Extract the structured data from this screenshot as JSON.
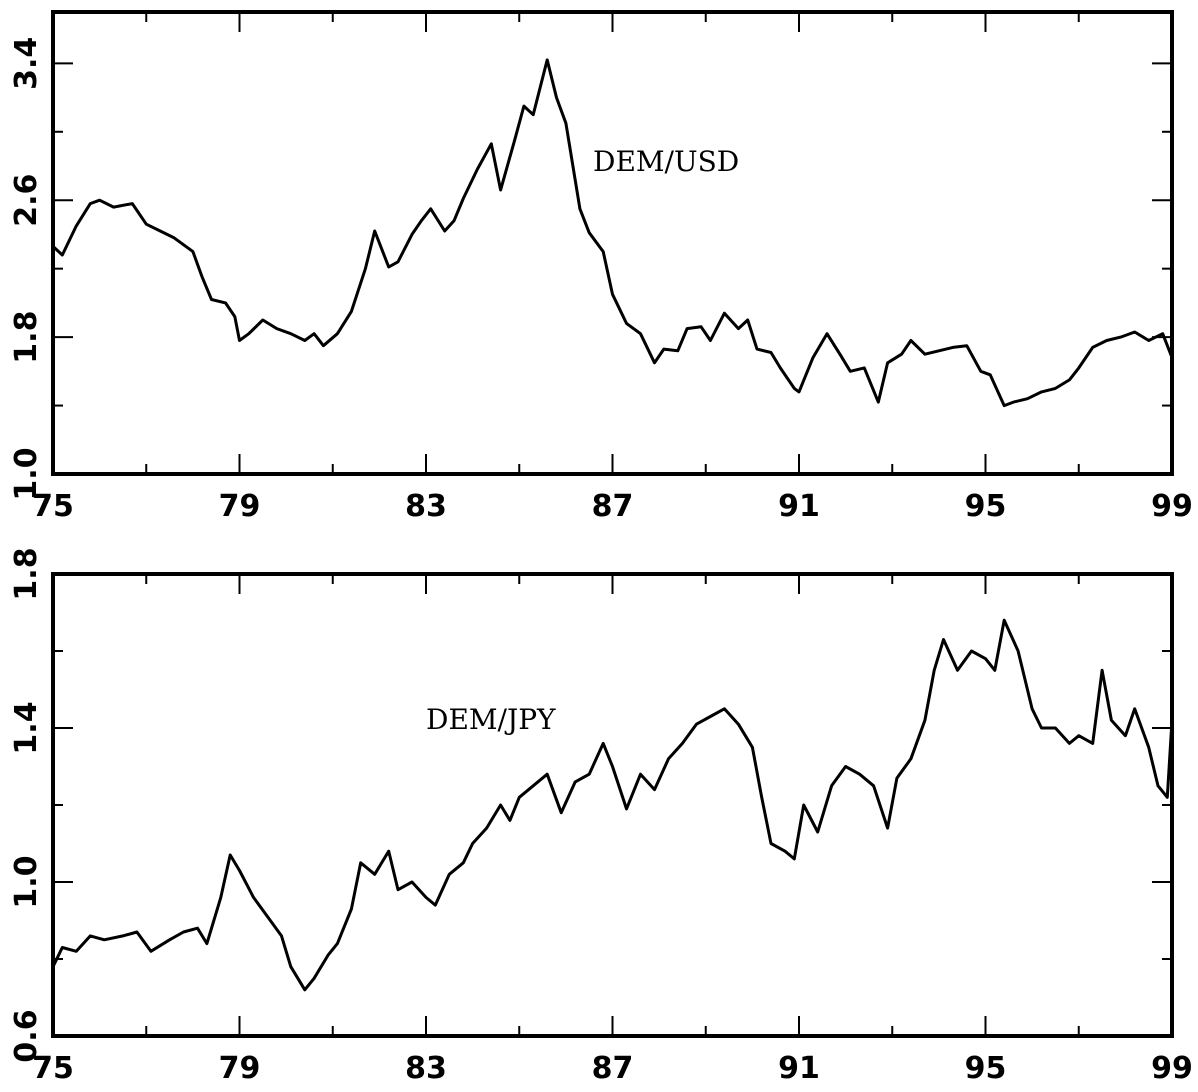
{
  "chart_data": [
    {
      "type": "line",
      "title": "",
      "xlabel": "",
      "ylabel": "",
      "annotation": "DEM/USD",
      "xlim": [
        75,
        99
      ],
      "ylim": [
        1.0,
        3.7
      ],
      "xtick_labels": [
        "75",
        "79",
        "83",
        "87",
        "91",
        "95",
        "99"
      ],
      "ytick_labels": [
        "1.0",
        "1.8",
        "2.6",
        "3.4"
      ],
      "grid": false,
      "series": [
        {
          "x": [
            75.0,
            75.2,
            75.5,
            75.8,
            76.0,
            76.3,
            76.7,
            77.0,
            77.3,
            77.6,
            78.0,
            78.2,
            78.4,
            78.7,
            78.9,
            79.0,
            79.2,
            79.5,
            79.8,
            80.1,
            80.4,
            80.6,
            80.8,
            81.1,
            81.4,
            81.7,
            81.9,
            82.2,
            82.4,
            82.7,
            82.9,
            83.1,
            83.4,
            83.6,
            83.8,
            84.1,
            84.4,
            84.6,
            84.9,
            85.1,
            85.3,
            85.6,
            85.8,
            86.0,
            86.3,
            86.5,
            86.8,
            87.0,
            87.3,
            87.6,
            87.9,
            88.1,
            88.4,
            88.6,
            88.9,
            89.1,
            89.4,
            89.7,
            89.9,
            90.1,
            90.4,
            90.6,
            90.9,
            91.0,
            91.3,
            91.6,
            91.9,
            92.1,
            92.4,
            92.7,
            92.9,
            93.2,
            93.4,
            93.7,
            94.0,
            94.3,
            94.6,
            94.9,
            95.1,
            95.4,
            95.6,
            95.9,
            96.2,
            96.5,
            96.8,
            97.0,
            97.3,
            97.6,
            97.9,
            98.2,
            98.5,
            98.8,
            99.0
          ],
          "values": [
            2.33,
            2.28,
            2.45,
            2.58,
            2.6,
            2.56,
            2.58,
            2.46,
            2.42,
            2.38,
            2.3,
            2.15,
            2.02,
            2.0,
            1.92,
            1.78,
            1.82,
            1.9,
            1.85,
            1.82,
            1.78,
            1.82,
            1.75,
            1.82,
            1.95,
            2.2,
            2.42,
            2.21,
            2.24,
            2.4,
            2.48,
            2.55,
            2.42,
            2.48,
            2.61,
            2.78,
            2.93,
            2.66,
            2.95,
            3.15,
            3.1,
            3.42,
            3.2,
            3.05,
            2.55,
            2.41,
            2.3,
            2.05,
            1.88,
            1.82,
            1.65,
            1.73,
            1.72,
            1.85,
            1.86,
            1.78,
            1.94,
            1.85,
            1.9,
            1.73,
            1.71,
            1.62,
            1.5,
            1.48,
            1.68,
            1.82,
            1.69,
            1.6,
            1.62,
            1.42,
            1.65,
            1.7,
            1.78,
            1.7,
            1.72,
            1.74,
            1.75,
            1.6,
            1.58,
            1.4,
            1.42,
            1.44,
            1.48,
            1.5,
            1.55,
            1.62,
            1.74,
            1.78,
            1.8,
            1.83,
            1.78,
            1.82,
            1.68
          ]
        }
      ]
    },
    {
      "type": "line",
      "title": "",
      "xlabel": "",
      "ylabel": "",
      "annotation": "DEM/JPY",
      "xlim": [
        75,
        99
      ],
      "ylim": [
        0.6,
        1.8
      ],
      "xtick_labels": [
        "75",
        "79",
        "83",
        "87",
        "91",
        "95",
        "99"
      ],
      "ytick_labels": [
        "0.6",
        "1.0",
        "1.4",
        "1.8"
      ],
      "grid": false,
      "series": [
        {
          "x": [
            75.0,
            75.2,
            75.5,
            75.8,
            76.1,
            76.5,
            76.8,
            77.1,
            77.5,
            77.8,
            78.1,
            78.3,
            78.6,
            78.8,
            79.0,
            79.3,
            79.6,
            79.9,
            80.1,
            80.4,
            80.6,
            80.9,
            81.1,
            81.4,
            81.6,
            81.9,
            82.2,
            82.4,
            82.7,
            83.0,
            83.2,
            83.5,
            83.8,
            84.0,
            84.3,
            84.6,
            84.8,
            85.0,
            85.3,
            85.6,
            85.9,
            86.2,
            86.5,
            86.8,
            87.0,
            87.3,
            87.6,
            87.9,
            88.2,
            88.5,
            88.8,
            89.1,
            89.4,
            89.7,
            90.0,
            90.2,
            90.4,
            90.7,
            90.9,
            91.1,
            91.4,
            91.7,
            92.0,
            92.3,
            92.6,
            92.9,
            93.1,
            93.4,
            93.7,
            93.9,
            94.1,
            94.4,
            94.7,
            95.0,
            95.2,
            95.4,
            95.7,
            96.0,
            96.2,
            96.5,
            96.8,
            97.0,
            97.3,
            97.5,
            97.7,
            98.0,
            98.2,
            98.5,
            98.7,
            98.9,
            99.0
          ],
          "values": [
            0.78,
            0.83,
            0.82,
            0.86,
            0.85,
            0.86,
            0.87,
            0.82,
            0.85,
            0.87,
            0.88,
            0.84,
            0.96,
            1.07,
            1.03,
            0.96,
            0.91,
            0.86,
            0.78,
            0.72,
            0.75,
            0.81,
            0.84,
            0.93,
            1.05,
            1.02,
            1.08,
            0.98,
            1.0,
            0.96,
            0.94,
            1.02,
            1.05,
            1.1,
            1.14,
            1.2,
            1.16,
            1.22,
            1.25,
            1.28,
            1.18,
            1.26,
            1.28,
            1.36,
            1.3,
            1.19,
            1.28,
            1.24,
            1.32,
            1.36,
            1.41,
            1.43,
            1.45,
            1.41,
            1.35,
            1.22,
            1.1,
            1.08,
            1.06,
            1.2,
            1.13,
            1.25,
            1.3,
            1.28,
            1.25,
            1.14,
            1.27,
            1.32,
            1.42,
            1.55,
            1.63,
            1.55,
            1.6,
            1.58,
            1.55,
            1.68,
            1.6,
            1.45,
            1.4,
            1.4,
            1.36,
            1.38,
            1.36,
            1.55,
            1.42,
            1.38,
            1.45,
            1.35,
            1.25,
            1.22,
            1.42
          ]
        }
      ]
    }
  ]
}
